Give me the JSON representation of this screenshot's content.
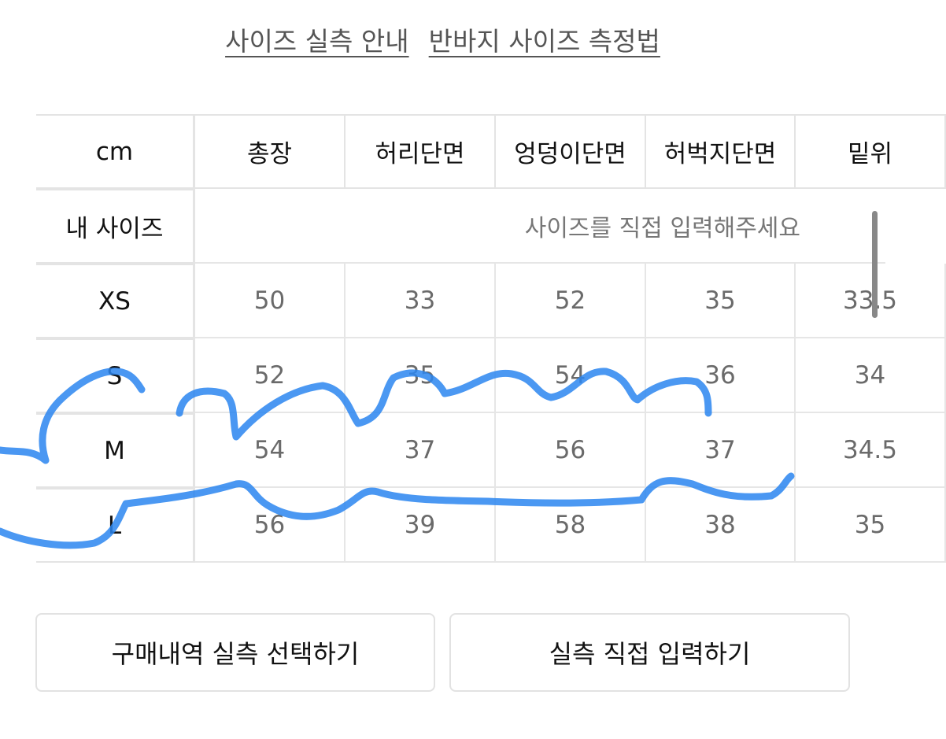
{
  "guide_links": [
    "사이즈 실측 안내",
    "반바지 사이즈 측정법"
  ],
  "table": {
    "unit_label": "cm",
    "columns": [
      "총장",
      "허리단면",
      "엉덩이단면",
      "허벅지단면",
      "밑위"
    ],
    "my_size_label": "내 사이즈",
    "my_size_placeholder": "사이즈를 직접 입력해주세요",
    "rows": [
      {
        "size": "XS",
        "values": [
          "50",
          "33",
          "52",
          "35",
          "33.5"
        ]
      },
      {
        "size": "S",
        "values": [
          "52",
          "35",
          "54",
          "36",
          "34"
        ]
      },
      {
        "size": "M",
        "values": [
          "54",
          "37",
          "56",
          "37",
          "34.5"
        ]
      },
      {
        "size": "L",
        "values": [
          "56",
          "39",
          "58",
          "38",
          "35"
        ]
      }
    ]
  },
  "buttons": {
    "purchase_history": "구매내역 실측 선택하기",
    "direct_input": "실측 직접 입력하기"
  },
  "colors": {
    "scribble": "#2b86f0",
    "border": "#e4e4e4"
  }
}
